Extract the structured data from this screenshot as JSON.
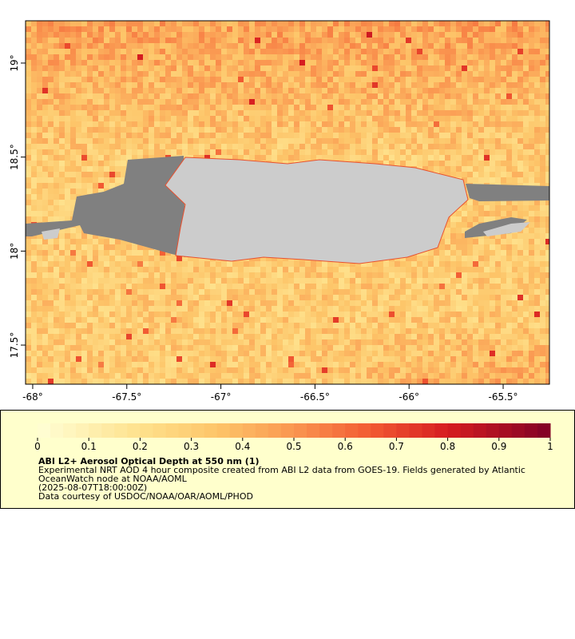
{
  "map": {
    "xlim": [
      -68.038,
      -65.254
    ],
    "ylim": [
      17.292,
      19.225
    ],
    "xticks": [
      {
        "value": -68,
        "label": "-68°"
      },
      {
        "value": -67.5,
        "label": "-67.5°"
      },
      {
        "value": -67,
        "label": "-67°"
      },
      {
        "value": -66.5,
        "label": "-66.5°"
      },
      {
        "value": -66,
        "label": "-66°"
      },
      {
        "value": -65.5,
        "label": "-65.5°"
      }
    ],
    "yticks": [
      {
        "value": 17.5,
        "label": "17.5°"
      },
      {
        "value": 18,
        "label": "18°"
      },
      {
        "value": 18.5,
        "label": "18.5°"
      },
      {
        "value": 19,
        "label": "19°"
      }
    ]
  },
  "colorbar": {
    "range": [
      0,
      1
    ],
    "ticks": [
      0,
      0.1,
      0.2,
      0.3,
      0.4,
      0.5,
      0.6,
      0.7,
      0.8,
      0.9,
      1
    ]
  },
  "legend": {
    "title": "ABI L2+ Aerosol Optical Depth at 550 nm (1)",
    "lines": [
      "Experimental NRT AOD 4 hour composite created from ABI L2 data from GOES-19. Fields generated by Atlantic",
      "OceanWatch node at NOAA/AOML",
      "(2025-08-07T18:00:00Z)",
      "Data courtesy of USDOC/NOAA/OAR/AOML/PHOD"
    ]
  }
}
